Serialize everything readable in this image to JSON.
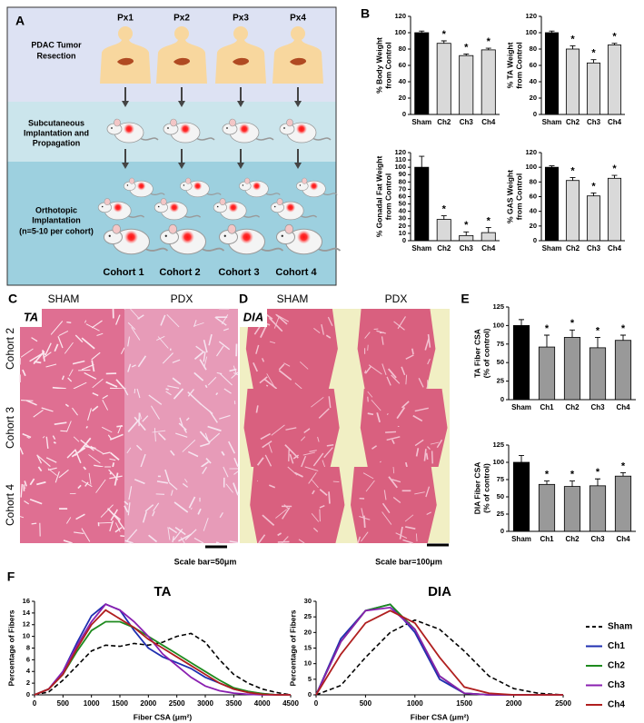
{
  "panel_a": {
    "label": "A",
    "patients": [
      "Px1",
      "Px2",
      "Px3",
      "Px4"
    ],
    "steps": [
      [
        "PDAC Tumor",
        "Resection"
      ],
      [
        "Subcutaneous",
        "Implantation and",
        "Propagation"
      ],
      [
        "Orthotopic",
        "Implantation",
        "(n=5-10 per cohort)"
      ]
    ],
    "cohorts": [
      "Cohort 1",
      "Cohort 2",
      "Cohort 3",
      "Cohort 4"
    ]
  },
  "panel_labels": {
    "b": "B",
    "e": "E",
    "f": "F"
  },
  "panel_c": {
    "label": "C",
    "columns": [
      "SHAM",
      "PDX"
    ],
    "muscle": "TA",
    "rows": [
      "Cohort 2",
      "Cohort 3",
      "Cohort 4"
    ],
    "scale_bar": "Scale bar=50μm"
  },
  "panel_d": {
    "label": "D",
    "columns": [
      "SHAM",
      "PDX"
    ],
    "muscle": "DIA",
    "scale_bar": "Scale bar=100μm"
  },
  "chart_data": [
    {
      "type": "bar",
      "ylabel": [
        "% Body Weight",
        "from Control"
      ],
      "categories": [
        "Sham",
        "Ch2",
        "Ch3",
        "Ch4"
      ],
      "values": [
        100,
        87,
        72,
        79
      ],
      "errors": [
        2,
        3,
        2,
        2
      ],
      "colors": [
        "#000000",
        "#d9d9d9",
        "#d9d9d9",
        "#d9d9d9"
      ],
      "significance": [
        null,
        "*",
        "*",
        "*"
      ],
      "ylim": [
        0,
        120
      ],
      "yticks": [
        0,
        20,
        40,
        60,
        80,
        100,
        120
      ]
    },
    {
      "type": "bar",
      "ylabel": [
        "% TA Weight",
        "from Control"
      ],
      "categories": [
        "Sham",
        "Ch2",
        "Ch3",
        "Ch4"
      ],
      "values": [
        100,
        80,
        63,
        85
      ],
      "errors": [
        2,
        4,
        4,
        2
      ],
      "colors": [
        "#000000",
        "#d9d9d9",
        "#d9d9d9",
        "#d9d9d9"
      ],
      "significance": [
        null,
        "*",
        "*",
        "*"
      ],
      "ylim": [
        0,
        120
      ],
      "yticks": [
        0,
        20,
        40,
        60,
        80,
        100,
        120
      ]
    },
    {
      "type": "bar",
      "ylabel": [
        "% Gonadal Fat Weight",
        "from Control"
      ],
      "categories": [
        "Sham",
        "Ch2",
        "Ch3",
        "Ch4"
      ],
      "values": [
        100,
        29,
        7,
        11
      ],
      "errors": [
        15,
        5,
        5,
        7
      ],
      "colors": [
        "#000000",
        "#d9d9d9",
        "#d9d9d9",
        "#d9d9d9"
      ],
      "significance": [
        null,
        "*",
        "*",
        "*"
      ],
      "ylim": [
        0,
        120
      ],
      "yticks": [
        0,
        10,
        20,
        30,
        40,
        50,
        60,
        70,
        80,
        90,
        100,
        110,
        120
      ]
    },
    {
      "type": "bar",
      "ylabel": [
        "% GAS Weight",
        "from Control"
      ],
      "categories": [
        "Sham",
        "Ch2",
        "Ch3",
        "Ch4"
      ],
      "values": [
        100,
        82,
        61,
        85
      ],
      "errors": [
        2,
        4,
        4,
        4
      ],
      "colors": [
        "#000000",
        "#d9d9d9",
        "#d9d9d9",
        "#d9d9d9"
      ],
      "significance": [
        null,
        "*",
        "*",
        "*"
      ],
      "ylim": [
        0,
        120
      ],
      "yticks": [
        0,
        20,
        40,
        60,
        80,
        100,
        120
      ]
    },
    {
      "type": "bar",
      "ylabel": [
        "TA Fiber CSA",
        "(% of control)"
      ],
      "categories": [
        "Sham",
        "Ch1",
        "Ch2",
        "Ch3",
        "Ch4"
      ],
      "values": [
        100,
        71,
        84,
        70,
        80
      ],
      "errors": [
        8,
        16,
        10,
        14,
        7
      ],
      "colors": [
        "#000000",
        "#999999",
        "#999999",
        "#999999",
        "#999999"
      ],
      "significance": [
        null,
        "*",
        "*",
        "*",
        "*"
      ],
      "ylim": [
        0,
        125
      ],
      "yticks": [
        0,
        25,
        50,
        75,
        100,
        125
      ]
    },
    {
      "type": "bar",
      "ylabel": [
        "DIA Fiber CSA",
        "(% of control)"
      ],
      "categories": [
        "Sham",
        "Ch1",
        "Ch2",
        "Ch3",
        "Ch4"
      ],
      "values": [
        100,
        68,
        65,
        66,
        80
      ],
      "errors": [
        10,
        5,
        8,
        10,
        5
      ],
      "colors": [
        "#000000",
        "#999999",
        "#999999",
        "#999999",
        "#999999"
      ],
      "significance": [
        null,
        "*",
        "*",
        "*",
        "*"
      ],
      "ylim": [
        0,
        125
      ],
      "yticks": [
        0,
        25,
        50,
        75,
        100,
        125
      ]
    },
    {
      "type": "line",
      "title": "TA",
      "xlabel": "Fiber CSA (μm²)",
      "ylabel": "Percentage of Fibers",
      "x": [
        0,
        250,
        500,
        750,
        1000,
        1250,
        1500,
        1750,
        2000,
        2250,
        2500,
        2750,
        3000,
        3250,
        3500,
        3750,
        4000,
        4250,
        4500
      ],
      "xlim": [
        0,
        4500
      ],
      "xticks": [
        0,
        500,
        1000,
        1500,
        2000,
        2500,
        3000,
        3500,
        4000,
        4500
      ],
      "ylim": [
        0,
        16
      ],
      "yticks": [
        0,
        2,
        4,
        6,
        8,
        10,
        12,
        14,
        16
      ],
      "legend": false,
      "series": [
        {
          "name": "Sham",
          "color": "#000000",
          "dashed": true,
          "values": [
            0,
            0.5,
            2.5,
            5,
            7.5,
            8.5,
            8.3,
            8.8,
            8.5,
            9,
            10,
            10.5,
            9,
            6,
            3.5,
            2,
            1,
            0.4,
            0
          ]
        },
        {
          "name": "Ch1",
          "color": "#1f2fb0",
          "dashed": false,
          "values": [
            0,
            1,
            4,
            9,
            13.5,
            15.5,
            14.5,
            11,
            8,
            6.5,
            5.5,
            4.5,
            3,
            2,
            1,
            0.5,
            0.2,
            0,
            0
          ]
        },
        {
          "name": "Ch2",
          "color": "#1e8a1e",
          "dashed": false,
          "values": [
            0,
            1,
            3.5,
            7.5,
            11,
            12.5,
            12.5,
            11.5,
            10,
            8.5,
            7,
            5.5,
            4,
            2.5,
            1.2,
            0.6,
            0.2,
            0,
            0
          ]
        },
        {
          "name": "Ch3",
          "color": "#8a1fb0",
          "dashed": false,
          "values": [
            0,
            1,
            4,
            8.5,
            12.5,
            15.5,
            14.5,
            12.5,
            10,
            7,
            5,
            3,
            1.5,
            0.7,
            0.3,
            0.1,
            0,
            0,
            0
          ]
        },
        {
          "name": "Ch4",
          "color": "#b01f1f",
          "dashed": false,
          "values": [
            0,
            1,
            3.5,
            8,
            12,
            14.5,
            13,
            11.5,
            9.5,
            8,
            6.5,
            5,
            3.5,
            2,
            1,
            0.4,
            0.1,
            0,
            0
          ]
        }
      ]
    },
    {
      "type": "line",
      "title": "DIA",
      "xlabel": "Fiber CSA (μm²)",
      "ylabel": "Percentage of Fibers",
      "x": [
        0,
        250,
        500,
        750,
        1000,
        1250,
        1500,
        1750,
        2000,
        2250,
        2500
      ],
      "xlim": [
        0,
        2500
      ],
      "xticks": [
        0,
        500,
        1000,
        1500,
        2000,
        2500
      ],
      "ylim": [
        0,
        30
      ],
      "yticks": [
        0,
        5,
        10,
        15,
        20,
        25,
        30
      ],
      "legend": "right",
      "series": [
        {
          "name": "Sham",
          "color": "#000000",
          "dashed": true,
          "values": [
            0,
            3,
            12,
            20,
            24,
            21,
            14,
            6,
            2,
            0.5,
            0
          ]
        },
        {
          "name": "Ch1",
          "color": "#1f2fb0",
          "dashed": false,
          "values": [
            0,
            18,
            27,
            29,
            20,
            5,
            0.5,
            0,
            0,
            0,
            0
          ]
        },
        {
          "name": "Ch2",
          "color": "#1e8a1e",
          "dashed": false,
          "values": [
            0,
            17,
            27,
            29,
            21,
            6,
            0.5,
            0,
            0,
            0,
            0
          ]
        },
        {
          "name": "Ch3",
          "color": "#8a1fb0",
          "dashed": false,
          "values": [
            0,
            17,
            27,
            28,
            21,
            6,
            0.5,
            0,
            0,
            0,
            0
          ]
        },
        {
          "name": "Ch4",
          "color": "#b01f1f",
          "dashed": false,
          "values": [
            0,
            13,
            23,
            27,
            23,
            12,
            2.5,
            0.5,
            0,
            0,
            0
          ]
        }
      ]
    }
  ]
}
